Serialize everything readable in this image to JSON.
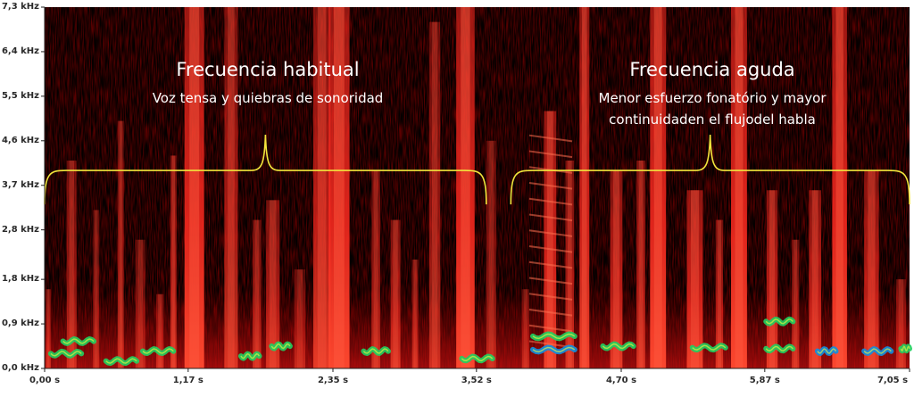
{
  "chart_data": {
    "type": "heatmap",
    "title": "",
    "xlabel": "",
    "ylabel": "",
    "x_unit": "s",
    "y_unit": "kHz",
    "xlim": [
      0.0,
      7.05
    ],
    "ylim": [
      0.0,
      7.3
    ],
    "x_tick_labels": [
      "0,00 s",
      "1,17 s",
      "2,35 s",
      "3,52 s",
      "4,70 s",
      "5,87 s",
      "7,05 s"
    ],
    "x_tick_values": [
      0.0,
      1.17,
      2.35,
      3.52,
      4.7,
      5.87,
      7.05
    ],
    "y_tick_labels": [
      "7,3 kHz",
      "6,4 kHz",
      "5,5 kHz",
      "4,6 kHz",
      "3,7 kHz",
      "2,8 kHz",
      "1,8 kHz",
      "0,9 kHz",
      "0,0 kHz"
    ],
    "y_tick_values": [
      7.3,
      6.4,
      5.5,
      4.6,
      3.7,
      2.8,
      1.8,
      0.9,
      0.0
    ],
    "colormap": [
      "#000000",
      "#5a0000",
      "#c80000",
      "#ff2020",
      "#ff6040",
      "#20d060",
      "#1090e0"
    ],
    "grid": false,
    "annotations": [
      {
        "title": "Frecuencia habitual",
        "subtitle_lines": [
          "Voz tensa y quiebras de sonoridad"
        ],
        "x_range": [
          0.0,
          3.6
        ],
        "brace_freq": 4.0
      },
      {
        "title": "Frecuencia aguda",
        "subtitle_lines": [
          "Menor esfuerzo fonatório y mayor",
          "continuidaden el flujodel habla"
        ],
        "x_range": [
          3.8,
          7.05
        ],
        "brace_freq": 4.0
      }
    ],
    "bands": [
      {
        "t": 0.03,
        "w": 0.04,
        "top": 1.6,
        "i": 0.6
      },
      {
        "t": 0.22,
        "w": 0.08,
        "top": 4.2,
        "i": 0.6
      },
      {
        "t": 0.42,
        "w": 0.05,
        "top": 3.2,
        "i": 0.5
      },
      {
        "t": 0.62,
        "w": 0.05,
        "top": 5.0,
        "i": 0.6
      },
      {
        "t": 0.78,
        "w": 0.08,
        "top": 2.6,
        "i": 0.5
      },
      {
        "t": 0.94,
        "w": 0.06,
        "top": 1.5,
        "i": 0.6
      },
      {
        "t": 1.05,
        "w": 0.05,
        "top": 4.3,
        "i": 0.7
      },
      {
        "t": 1.22,
        "w": 0.16,
        "top": 7.3,
        "i": 1.0
      },
      {
        "t": 1.52,
        "w": 0.11,
        "top": 7.3,
        "i": 0.7
      },
      {
        "t": 1.73,
        "w": 0.07,
        "top": 3.0,
        "i": 0.6
      },
      {
        "t": 1.86,
        "w": 0.11,
        "top": 3.4,
        "i": 0.7
      },
      {
        "t": 2.08,
        "w": 0.09,
        "top": 2.0,
        "i": 0.5
      },
      {
        "t": 2.26,
        "w": 0.14,
        "top": 7.3,
        "i": 0.8
      },
      {
        "t": 2.4,
        "w": 0.17,
        "top": 7.3,
        "i": 1.0
      },
      {
        "t": 2.7,
        "w": 0.07,
        "top": 4.0,
        "i": 0.6
      },
      {
        "t": 2.86,
        "w": 0.08,
        "top": 3.0,
        "i": 0.7
      },
      {
        "t": 3.02,
        "w": 0.05,
        "top": 2.2,
        "i": 0.6
      },
      {
        "t": 3.18,
        "w": 0.09,
        "top": 7.0,
        "i": 0.6
      },
      {
        "t": 3.43,
        "w": 0.15,
        "top": 7.3,
        "i": 1.0
      },
      {
        "t": 3.64,
        "w": 0.08,
        "top": 4.6,
        "i": 0.5
      },
      {
        "t": 3.92,
        "w": 0.06,
        "top": 1.6,
        "i": 0.5
      },
      {
        "t": 4.12,
        "w": 0.1,
        "top": 5.2,
        "i": 0.9
      },
      {
        "t": 4.28,
        "w": 0.07,
        "top": 4.2,
        "i": 0.7
      },
      {
        "t": 4.4,
        "w": 0.08,
        "top": 7.3,
        "i": 0.9
      },
      {
        "t": 4.66,
        "w": 0.1,
        "top": 4.0,
        "i": 0.8
      },
      {
        "t": 4.86,
        "w": 0.07,
        "top": 4.2,
        "i": 0.7
      },
      {
        "t": 5.0,
        "w": 0.13,
        "top": 7.3,
        "i": 1.0
      },
      {
        "t": 5.3,
        "w": 0.13,
        "top": 3.6,
        "i": 0.9
      },
      {
        "t": 5.5,
        "w": 0.06,
        "top": 3.0,
        "i": 0.7
      },
      {
        "t": 5.66,
        "w": 0.13,
        "top": 7.3,
        "i": 1.0
      },
      {
        "t": 5.93,
        "w": 0.09,
        "top": 3.6,
        "i": 0.8
      },
      {
        "t": 6.12,
        "w": 0.06,
        "top": 2.6,
        "i": 0.6
      },
      {
        "t": 6.28,
        "w": 0.1,
        "top": 3.6,
        "i": 0.8
      },
      {
        "t": 6.48,
        "w": 0.12,
        "top": 7.3,
        "i": 1.0
      },
      {
        "t": 6.74,
        "w": 0.12,
        "top": 4.0,
        "i": 0.8
      },
      {
        "t": 6.98,
        "w": 0.08,
        "top": 1.8,
        "i": 0.6
      }
    ],
    "formants": [
      {
        "t0": 0.05,
        "t1": 0.3,
        "freq": 0.3,
        "color": "#20d060"
      },
      {
        "t0": 0.15,
        "t1": 0.4,
        "freq": 0.55,
        "color": "#20d060"
      },
      {
        "t0": 0.5,
        "t1": 0.75,
        "freq": 0.15,
        "color": "#20d060"
      },
      {
        "t0": 0.8,
        "t1": 1.05,
        "freq": 0.35,
        "color": "#20d060"
      },
      {
        "t0": 1.6,
        "t1": 1.75,
        "freq": 0.25,
        "color": "#20d060"
      },
      {
        "t0": 1.85,
        "t1": 2.0,
        "freq": 0.45,
        "color": "#20d060"
      },
      {
        "t0": 2.6,
        "t1": 2.8,
        "freq": 0.35,
        "color": "#20d060"
      },
      {
        "t0": 3.4,
        "t1": 3.65,
        "freq": 0.2,
        "color": "#20d060"
      },
      {
        "t0": 3.98,
        "t1": 4.32,
        "freq": 0.38,
        "color": "#1090e0"
      },
      {
        "t0": 3.98,
        "t1": 4.32,
        "freq": 0.65,
        "color": "#20d060"
      },
      {
        "t0": 4.55,
        "t1": 4.8,
        "freq": 0.45,
        "color": "#20d060"
      },
      {
        "t0": 5.28,
        "t1": 5.55,
        "freq": 0.42,
        "color": "#20d060"
      },
      {
        "t0": 5.88,
        "t1": 6.1,
        "freq": 0.4,
        "color": "#20d060"
      },
      {
        "t0": 5.88,
        "t1": 6.1,
        "freq": 0.95,
        "color": "#20d060"
      },
      {
        "t0": 6.3,
        "t1": 6.45,
        "freq": 0.35,
        "color": "#1090e0"
      },
      {
        "t0": 6.68,
        "t1": 6.9,
        "freq": 0.35,
        "color": "#1090e0"
      },
      {
        "t0": 6.98,
        "t1": 7.05,
        "freq": 0.4,
        "color": "#20d060"
      }
    ]
  }
}
